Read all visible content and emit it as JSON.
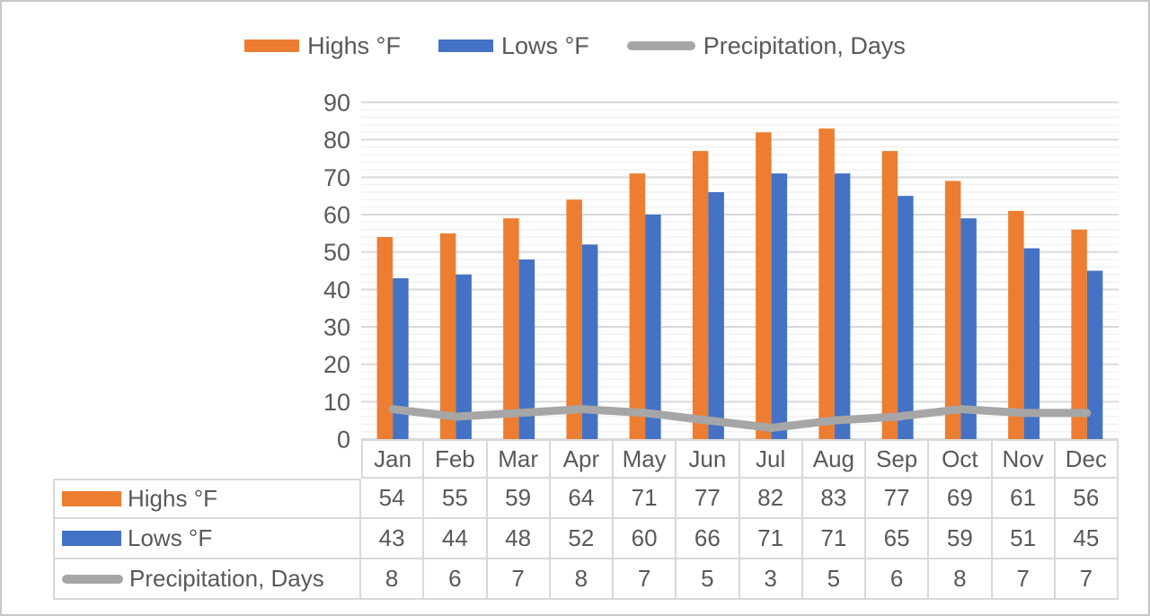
{
  "legend": {
    "items": [
      {
        "label": "Highs °F",
        "type": "bar",
        "color": "#ED7D31"
      },
      {
        "label": "Lows °F",
        "type": "bar",
        "color": "#4472C4"
      },
      {
        "label": "Precipitation, Days",
        "type": "line",
        "color": "#A6A6A6"
      }
    ]
  },
  "chart_data": {
    "type": "combo-bar-line",
    "title": "",
    "xlabel": "",
    "ylabel": "",
    "categories": [
      "Jan",
      "Feb",
      "Mar",
      "Apr",
      "May",
      "Jun",
      "Jul",
      "Aug",
      "Sep",
      "Oct",
      "Nov",
      "Dec"
    ],
    "series": [
      {
        "name": "Highs °F",
        "type": "bar",
        "color": "#ED7D31",
        "values": [
          54,
          55,
          59,
          64,
          71,
          77,
          82,
          83,
          77,
          69,
          61,
          56
        ]
      },
      {
        "name": "Lows °F",
        "type": "bar",
        "color": "#4472C4",
        "values": [
          43,
          44,
          48,
          52,
          60,
          66,
          71,
          71,
          65,
          59,
          51,
          45
        ]
      },
      {
        "name": "Precipitation, Days",
        "type": "line",
        "color": "#A6A6A6",
        "values": [
          8,
          6,
          7,
          8,
          7,
          5,
          3,
          5,
          6,
          8,
          7,
          7
        ]
      }
    ],
    "ylim": [
      0,
      90
    ],
    "y_tick_step": 10,
    "y_minor_grid_step": 2,
    "grid": "major+minor horizontal",
    "legend_position": "top",
    "data_table_shown": true
  },
  "colors": {
    "text": "#595959",
    "grid_major": "#D9D9D9",
    "grid_minor": "#F2F2F2",
    "table_border": "#D9D9D9",
    "frame_border": "#C6C6C6",
    "background": "#FFFFFF"
  }
}
